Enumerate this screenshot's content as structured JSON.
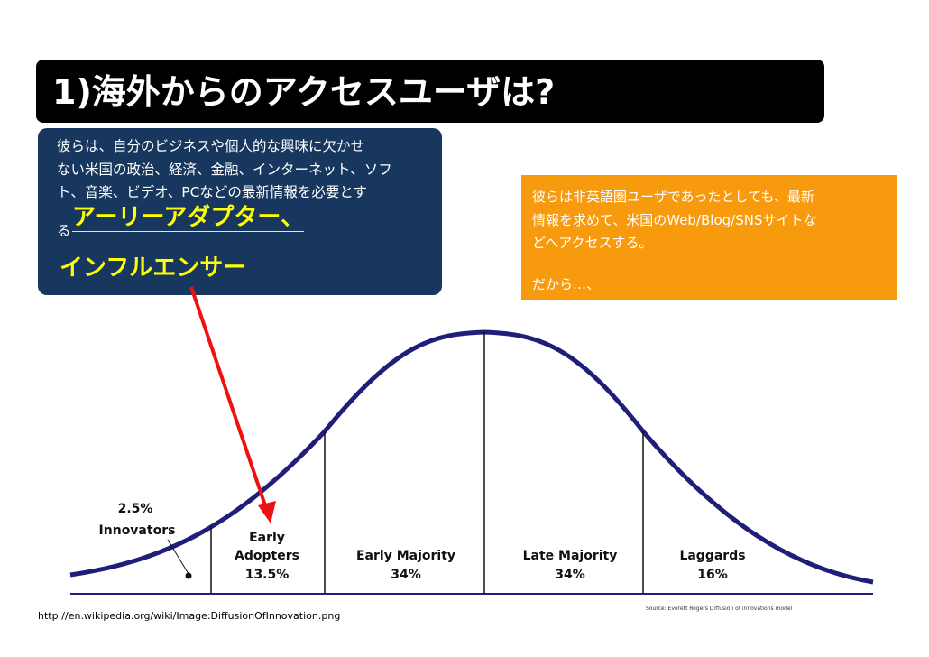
{
  "slide": {
    "title": "1)海外からのアクセスユーザは?",
    "navy_box": {
      "lines": [
        "彼らは、自分のビジネスや個人的な興味に欠かせ",
        "ない米国の政治、経済、金融、インターネット、ソフ",
        "ト、音楽、ビデオ、PCなどの最新情報を必要とす"
      ],
      "line_prefix": "る",
      "highlight_1": "アーリーアダプター、",
      "highlight_2": "インフルエンサー"
    },
    "orange_box": {
      "lines": [
        "彼らは非英語圏ユーザであったとしても、最新",
        "情報を求めて、米国のWeb/Blog/SNSサイトな",
        "どへアクセスする。"
      ],
      "closing": "だから…、"
    },
    "source": "http://en.wikipedia.org/wiki/Image:DiffusionOfInnovation.png",
    "colors": {
      "title_bg": "#000000",
      "navy": "#17375e",
      "orange": "#f79a0e",
      "highlight": "#ffff00",
      "curve": "#1f1f7a",
      "arrow": "#ee1111"
    }
  },
  "diagram": {
    "type": "diffusion-of-innovation-bell-curve",
    "segments": [
      {
        "line1": "2.5%",
        "line2": "Innovators"
      },
      {
        "line1": "Early",
        "line2": "Adopters",
        "line3": "13.5%"
      },
      {
        "line1": "Early Majority",
        "line2": "34%"
      },
      {
        "line1": "Late Majority",
        "line2": "34%"
      },
      {
        "line1": "Laggards",
        "line2": "16%"
      }
    ],
    "credit": "Source: Everett Rogers Diffusion of innovations model"
  }
}
